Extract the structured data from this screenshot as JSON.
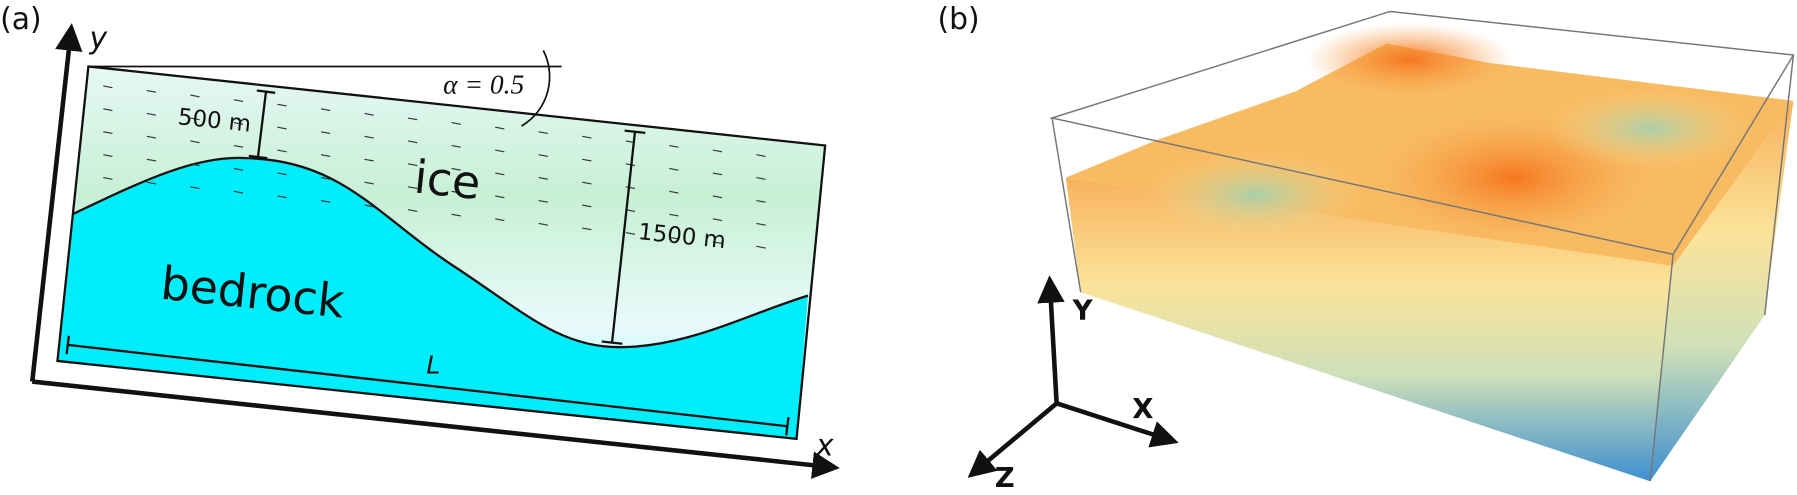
{
  "panel_a": {
    "label": "(a)",
    "y_axis": "y",
    "x_axis": "x",
    "angle": "α = 0.5",
    "top_thickness": "500 m",
    "ice": "ice",
    "max_thickness": "1500 m",
    "bedrock": "bedrock",
    "length": "L"
  },
  "panel_b": {
    "label": "(b)",
    "y_axis": "Y",
    "x_axis": "X",
    "z_axis": "Z"
  }
}
